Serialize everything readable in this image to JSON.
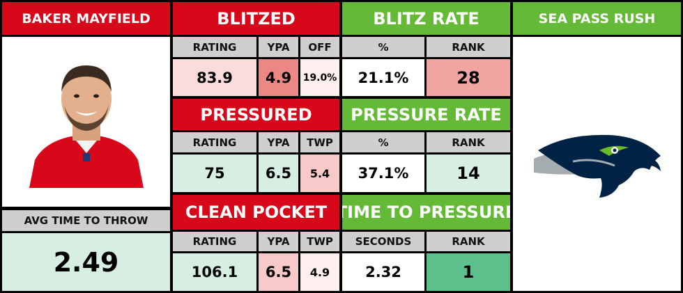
{
  "player": {
    "name": "BAKER MAYFIELD",
    "avg_time_label": "AVG TIME TO THROW",
    "avg_time_value": "2.49",
    "photo_icon": "player-photo-icon",
    "jersey_color": "#d6081a"
  },
  "opponent": {
    "header": "SEA PASS RUSH",
    "logo_icon": "seahawks-logo-icon"
  },
  "blitzed": {
    "header": "BLITZED",
    "cols": [
      "RATING",
      "YPA",
      "OFF"
    ],
    "values": [
      "83.9",
      "4.9",
      "19.0%"
    ]
  },
  "blitz_rate": {
    "header": "BLITZ RATE",
    "cols": [
      "%",
      "RANK"
    ],
    "values": [
      "21.1%",
      "28"
    ]
  },
  "pressured": {
    "header": "PRESSURED",
    "cols": [
      "RATING",
      "YPA",
      "TWP"
    ],
    "values": [
      "75",
      "6.5",
      "5.4"
    ]
  },
  "pressure_rate": {
    "header": "PRESSURE RATE",
    "cols": [
      "%",
      "RANK"
    ],
    "values": [
      "37.1%",
      "14"
    ]
  },
  "clean_pocket": {
    "header": "CLEAN POCKET",
    "cols": [
      "RATING",
      "YPA",
      "TWP"
    ],
    "values": [
      "106.1",
      "6.5",
      "4.9"
    ]
  },
  "time_to_pressure": {
    "header": "TIME TO PRESSURE",
    "cols": [
      "SECONDS",
      "RANK"
    ],
    "values": [
      "2.32",
      "1"
    ]
  },
  "colors": {
    "header_red": "#d6081a",
    "header_green": "#64b936",
    "subheader_gray": "#cfcfcf",
    "good_green": "#5dbf8b",
    "bad_red": "#ed8784"
  }
}
